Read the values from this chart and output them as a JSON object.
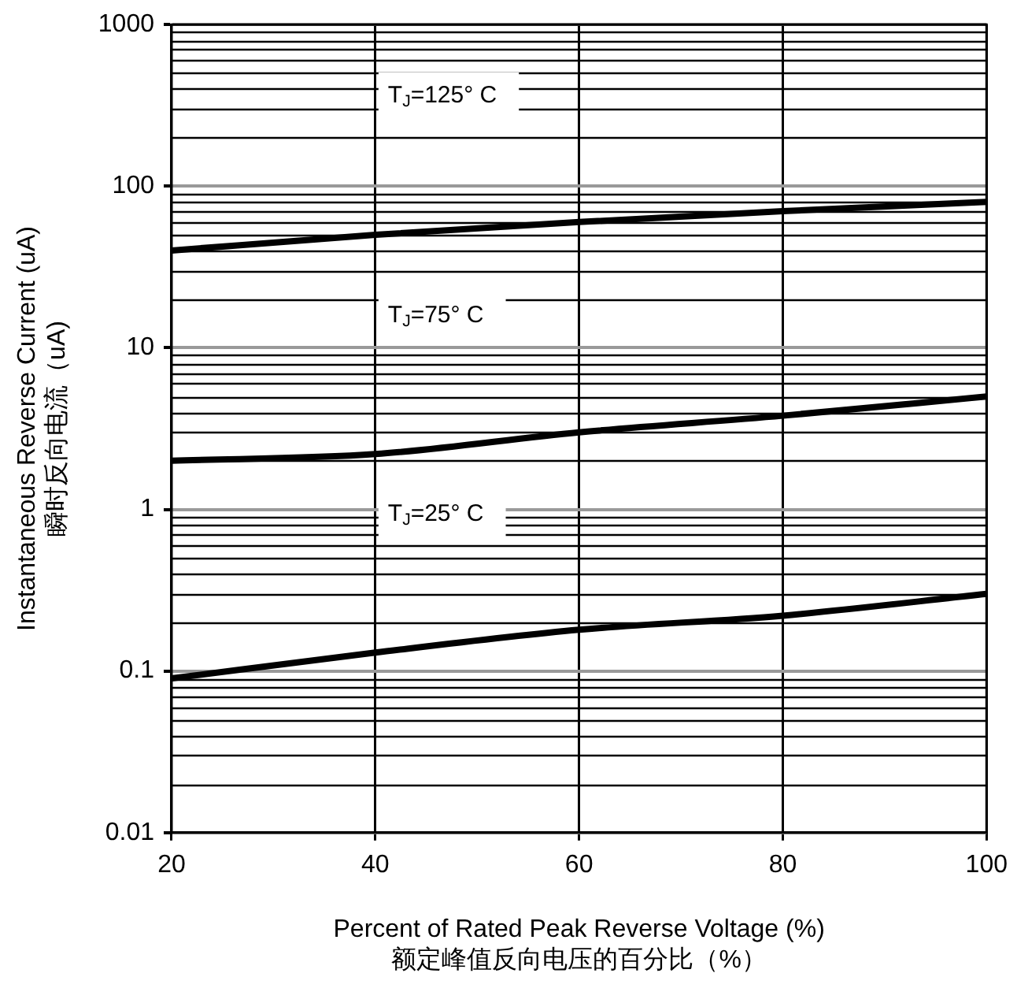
{
  "chart_data": {
    "type": "line",
    "xlabel": "Percent of Rated Peak Reverse Voltage (%)\n额定峰值反向电压的百分比（%）",
    "ylabel": "Instantaneous Reverse Current (uA)\n瞬时反向电流（uA)",
    "x": [
      20,
      40,
      60,
      80,
      100
    ],
    "series": [
      {
        "color": "#000000",
        "values": [
          40,
          50,
          60,
          70,
          80
        ]
      },
      {
        "color": "#000000",
        "values": [
          2,
          2.2,
          3,
          3.8,
          5
        ]
      },
      {
        "color": "#000000",
        "values": [
          0.09,
          0.13,
          0.18,
          0.22,
          0.3
        ]
      }
    ],
    "xlim": [
      20,
      100
    ],
    "xticks": [
      20,
      40,
      60,
      80,
      100
    ],
    "ylim": [
      0.01,
      1000
    ],
    "yticks": [
      0.01,
      0.1,
      1,
      10,
      100,
      1000
    ],
    "log": "y",
    "grid": true,
    "legend": false,
    "marker": "none",
    "line_style": "solid",
    "annotations": [
      "T$_{J}$=125° C",
      "T$_{J}$=75° C",
      "T$_{J}$=25° C"
    ]
  }
}
